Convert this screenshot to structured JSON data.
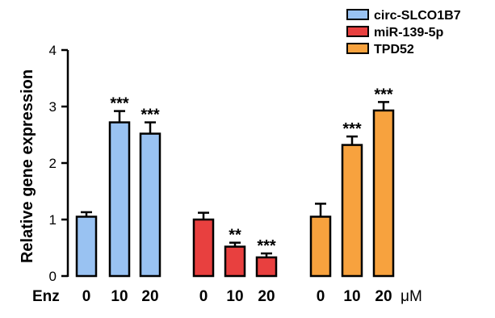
{
  "chart_data": {
    "type": "bar",
    "ylabel": "Relative gene expression",
    "ylim": [
      0,
      4
    ],
    "yticks": [
      "0",
      "1",
      "2",
      "3",
      "4"
    ],
    "x_prefix_label": "Enz",
    "x_unit_label": "μM",
    "categories": [
      "0",
      "10",
      "20"
    ],
    "series": [
      {
        "name": "circ-SLCO1B7",
        "color": "#99c2f2",
        "values": [
          1.05,
          2.72,
          2.52
        ],
        "errors": [
          0.08,
          0.2,
          0.2
        ],
        "significance": [
          "",
          "***",
          "***"
        ]
      },
      {
        "name": "miR-139-5p",
        "color": "#e8403f",
        "values": [
          1.0,
          0.52,
          0.33
        ],
        "errors": [
          0.12,
          0.07,
          0.07
        ],
        "significance": [
          "",
          "**",
          "***"
        ]
      },
      {
        "name": "TPD52",
        "color": "#f7a23e",
        "values": [
          1.05,
          2.32,
          2.93
        ],
        "errors": [
          0.23,
          0.15,
          0.15
        ],
        "significance": [
          "",
          "***",
          "***"
        ]
      }
    ],
    "legend_position": "top-right",
    "grid": false
  }
}
